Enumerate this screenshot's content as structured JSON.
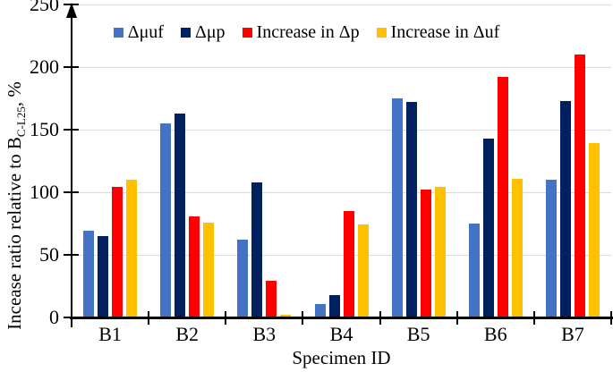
{
  "chart_data": {
    "type": "bar",
    "title": "",
    "categories": [
      "B1",
      "B2",
      "B3",
      "B4",
      "B5",
      "B6",
      "B7"
    ],
    "series": [
      {
        "name": "Δμuf",
        "color": "#4472C4",
        "values": [
          69,
          155,
          62,
          11,
          175,
          75,
          110
        ]
      },
      {
        "name": "Δμp",
        "color": "#002060",
        "values": [
          65,
          163,
          108,
          18,
          172,
          143,
          173
        ]
      },
      {
        "name": "Increase in Δp",
        "color": "#FF0000",
        "values": [
          104,
          81,
          29,
          85,
          102,
          192,
          210
        ]
      },
      {
        "name": "Increase in Δuf",
        "color": "#FFC000",
        "values": [
          110,
          76,
          2,
          74,
          104,
          111,
          139
        ]
      }
    ],
    "xlabel": "Specimen ID",
    "ylabel": "Incease ratio relative to B_C-L25, %",
    "ylabel_prefix": "Incease ratio relative to B",
    "ylabel_subscript": "C-L25",
    "ylabel_suffix": ", %",
    "ylim": [
      0,
      250
    ],
    "yticks": [
      0,
      50,
      100,
      150,
      200,
      250
    ],
    "grid": true,
    "gridline_color": "#dcdcdc",
    "axis_color": "#000000",
    "legend_position": "top-center"
  }
}
